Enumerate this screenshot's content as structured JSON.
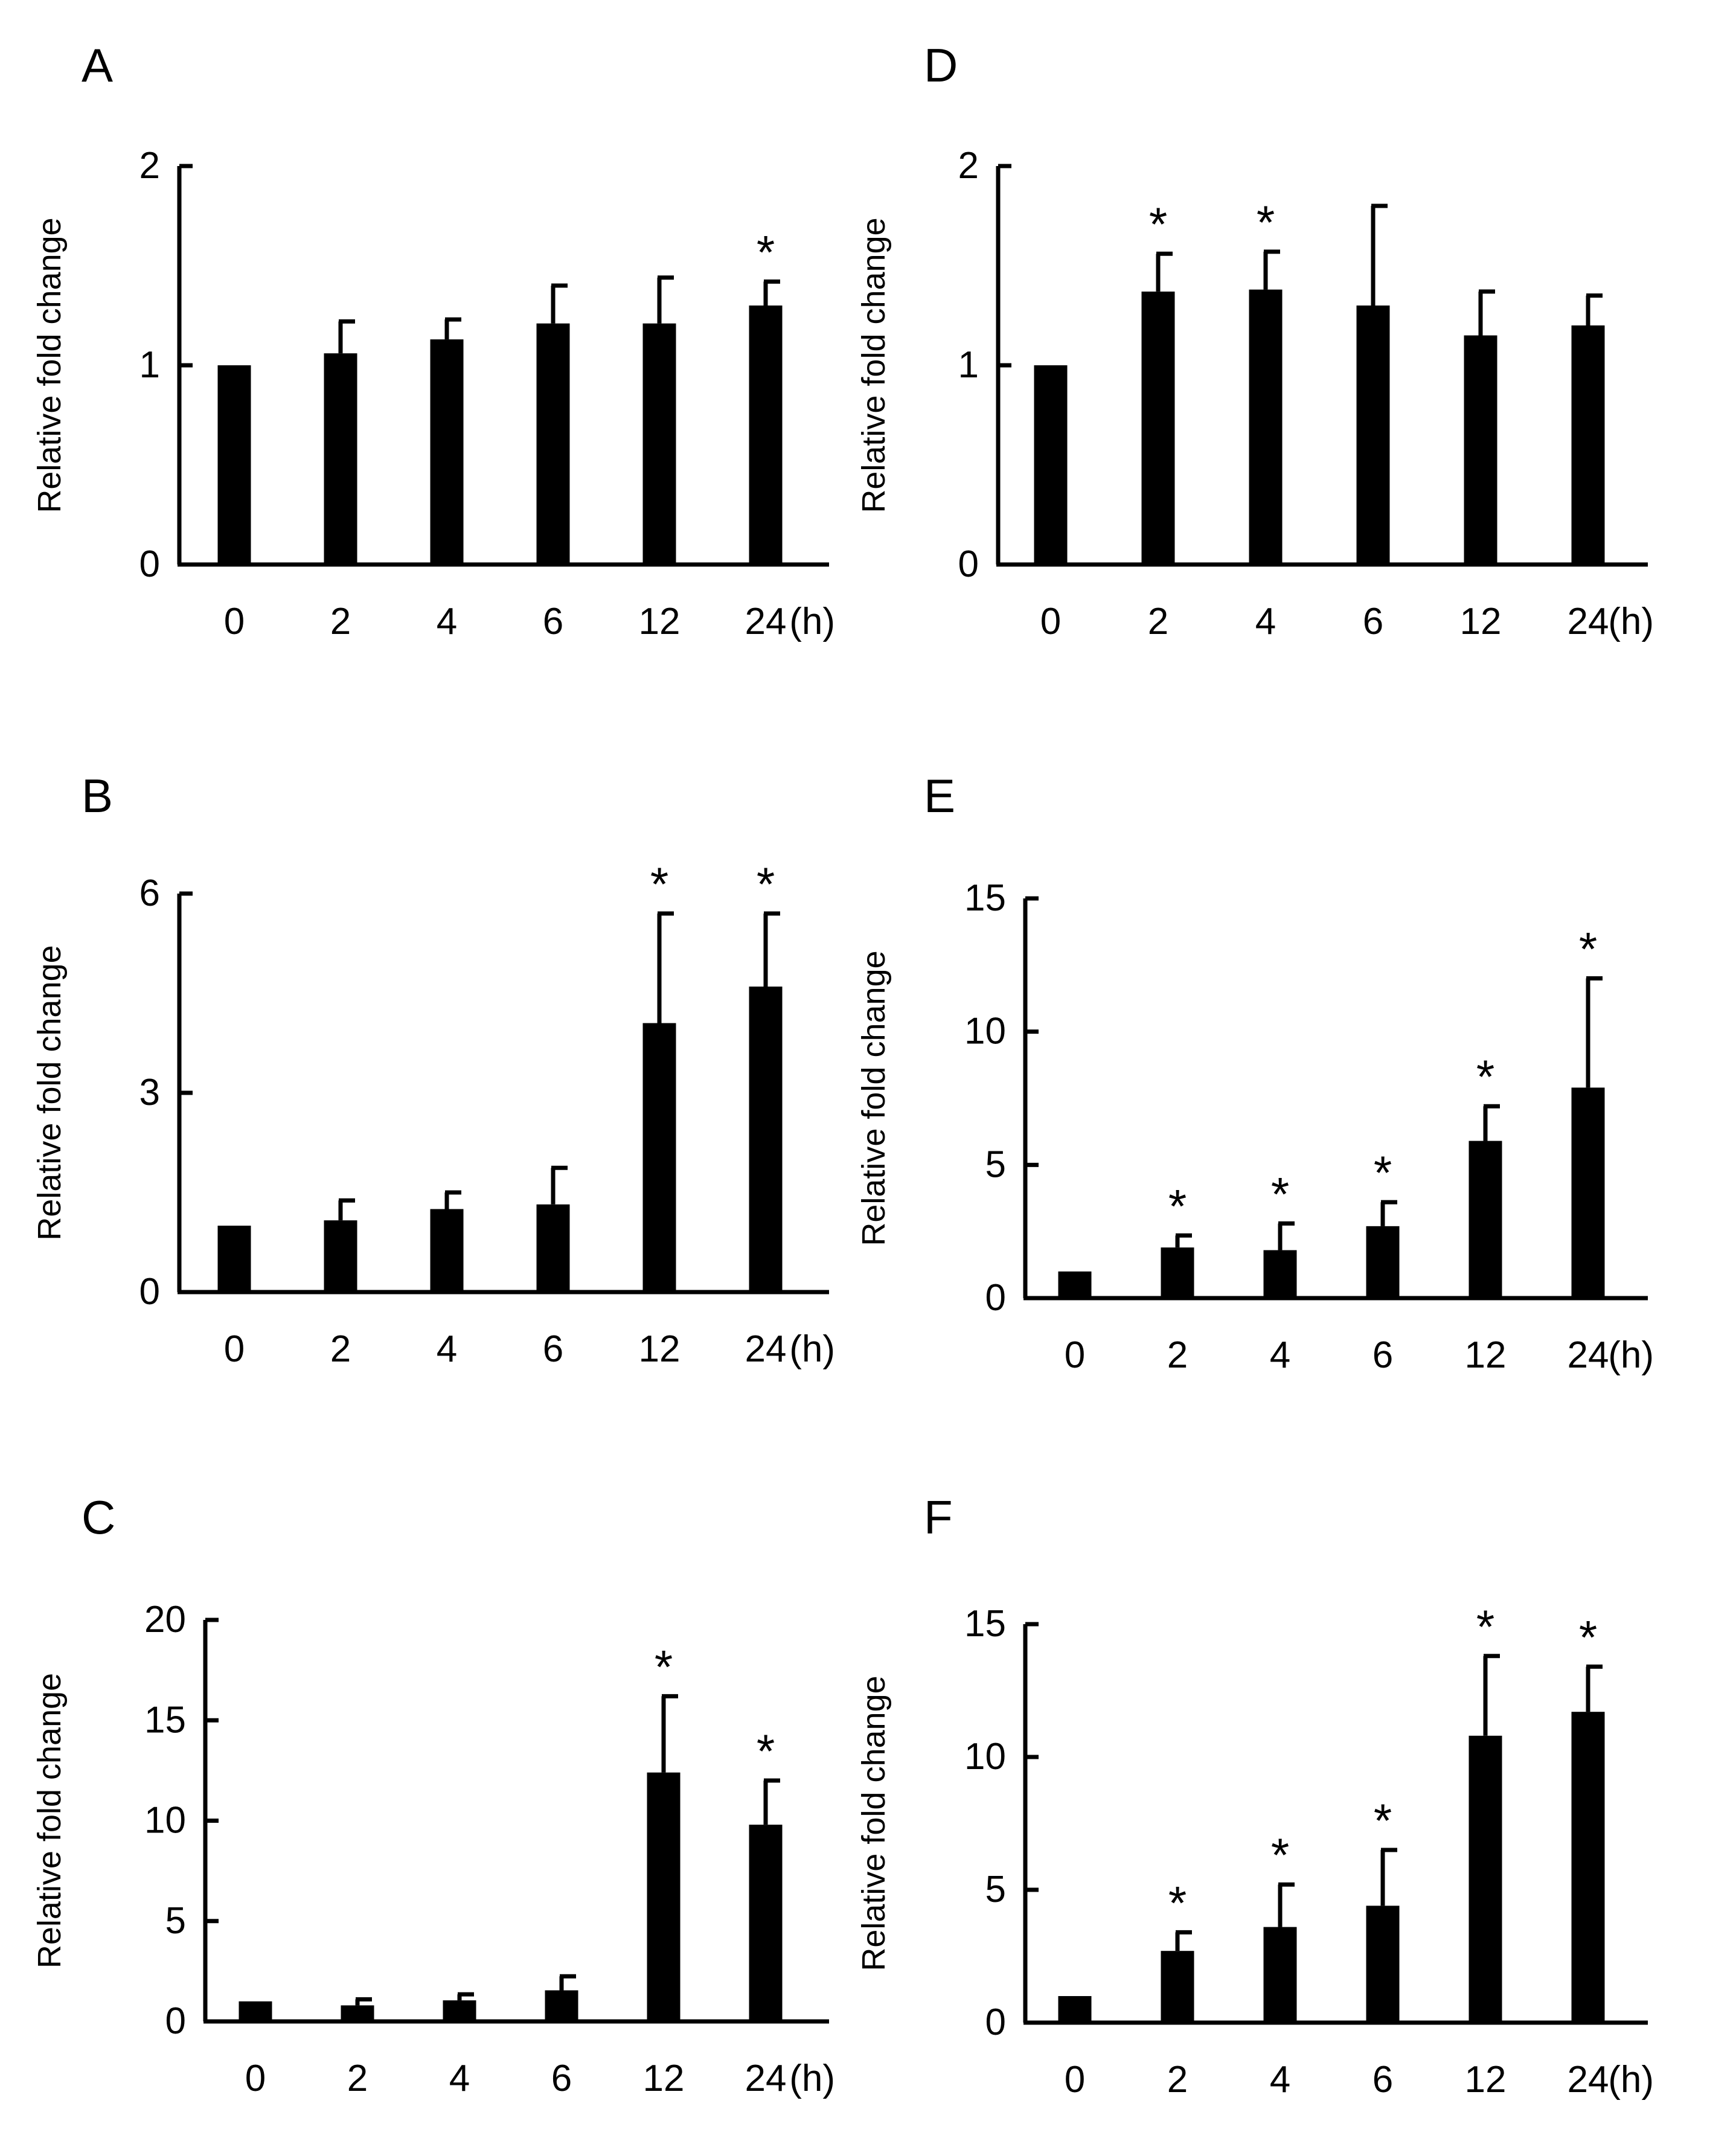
{
  "figure": {
    "unit_label": "(h)",
    "ylabel": "Relative fold change"
  },
  "chart_data": [
    {
      "panel": "A",
      "type": "bar",
      "title": "",
      "xlabel": "(h)",
      "ylabel": "Relative fold change",
      "categories": [
        "0",
        "2",
        "4",
        "6",
        "12",
        "24"
      ],
      "values": [
        1.0,
        1.06,
        1.13,
        1.21,
        1.21,
        1.3
      ],
      "errors": [
        0,
        0.16,
        0.1,
        0.19,
        0.23,
        0.12
      ],
      "significant": [
        false,
        false,
        false,
        false,
        false,
        true
      ],
      "ylim": [
        0,
        2
      ],
      "yticks": [
        0,
        1,
        2
      ],
      "ytick_labels": [
        "0",
        "1",
        "2"
      ],
      "grid": false
    },
    {
      "panel": "B",
      "type": "bar",
      "title": "",
      "xlabel": "(h)",
      "ylabel": "Relative fold change",
      "categories": [
        "0",
        "2",
        "4",
        "6",
        "12",
        "24"
      ],
      "values": [
        1.0,
        1.08,
        1.25,
        1.32,
        4.05,
        4.6
      ],
      "errors": [
        0,
        0.3,
        0.25,
        0.55,
        1.65,
        1.1
      ],
      "significant": [
        false,
        false,
        false,
        false,
        true,
        true
      ],
      "ylim": [
        0,
        6
      ],
      "yticks": [
        0,
        3,
        6
      ],
      "ytick_labels": [
        "0",
        "3",
        "6"
      ],
      "grid": false
    },
    {
      "panel": "C",
      "type": "bar",
      "title": "",
      "xlabel": "(h)",
      "ylabel": "Relative fold change",
      "categories": [
        "0",
        "2",
        "4",
        "6",
        "12",
        "24"
      ],
      "values": [
        1.0,
        0.8,
        1.05,
        1.55,
        12.4,
        9.8
      ],
      "errors": [
        0,
        0.3,
        0.3,
        0.7,
        3.8,
        2.2
      ],
      "significant": [
        false,
        false,
        false,
        false,
        true,
        true
      ],
      "ylim": [
        0,
        20
      ],
      "yticks": [
        0,
        5,
        10,
        15,
        20
      ],
      "ytick_labels": [
        "0",
        "5",
        "10",
        "15",
        "20"
      ],
      "grid": false
    },
    {
      "panel": "D",
      "type": "bar",
      "title": "",
      "xlabel": "(h)",
      "ylabel": "Relative fold change",
      "categories": [
        "0",
        "2",
        "4",
        "6",
        "12",
        "24"
      ],
      "values": [
        1.0,
        1.37,
        1.38,
        1.3,
        1.15,
        1.2
      ],
      "errors": [
        0,
        0.19,
        0.19,
        0.5,
        0.22,
        0.15
      ],
      "significant": [
        false,
        true,
        true,
        false,
        false,
        false
      ],
      "ylim": [
        0,
        2
      ],
      "yticks": [
        0,
        1,
        2
      ],
      "ytick_labels": [
        "0",
        "1",
        "2"
      ],
      "grid": false
    },
    {
      "panel": "E",
      "type": "bar",
      "title": "",
      "xlabel": "(h)",
      "ylabel": "Relative fold change",
      "categories": [
        "0",
        "2",
        "4",
        "6",
        "12",
        "24"
      ],
      "values": [
        1.0,
        1.9,
        1.8,
        2.7,
        5.9,
        7.9
      ],
      "errors": [
        0,
        0.45,
        1.0,
        0.9,
        1.3,
        4.1
      ],
      "significant": [
        false,
        true,
        true,
        true,
        true,
        true
      ],
      "ylim": [
        0,
        15
      ],
      "yticks": [
        0,
        5,
        10,
        15
      ],
      "ytick_labels": [
        "0",
        "5",
        "10",
        "15"
      ],
      "grid": false
    },
    {
      "panel": "F",
      "type": "bar",
      "title": "",
      "xlabel": "(h)",
      "ylabel": "Relative fold change",
      "categories": [
        "0",
        "2",
        "4",
        "6",
        "12",
        "24"
      ],
      "values": [
        1.0,
        2.7,
        3.6,
        4.4,
        10.8,
        11.7
      ],
      "errors": [
        0,
        0.7,
        1.6,
        2.1,
        3.0,
        1.7
      ],
      "significant": [
        false,
        true,
        true,
        true,
        true,
        true
      ],
      "ylim": [
        0,
        15
      ],
      "yticks": [
        0,
        5,
        10,
        15
      ],
      "ytick_labels": [
        "0",
        "5",
        "10",
        "15"
      ],
      "grid": false
    }
  ]
}
